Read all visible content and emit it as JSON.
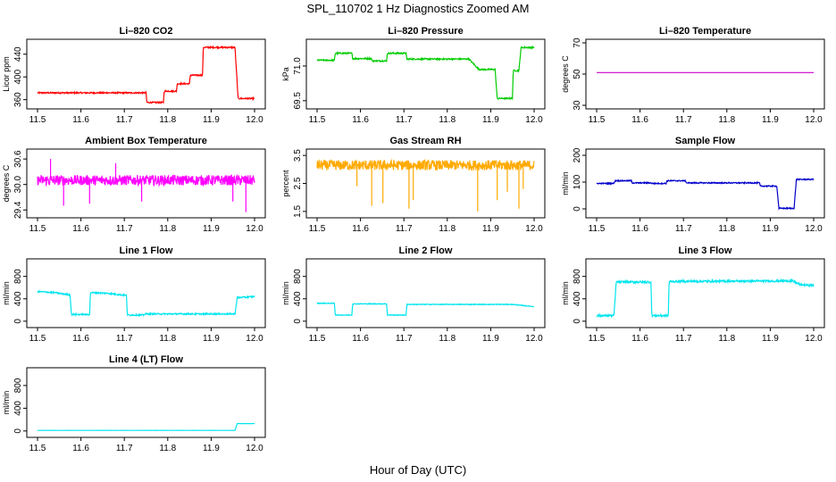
{
  "figure": {
    "title": "SPL_110702 1 Hz Diagnostics Zoomed AM",
    "xlabel": "Hour of Day (UTC)"
  },
  "chart_data": [
    {
      "type": "line",
      "title": "Li–820 CO2",
      "ylabel": "Licor ppm",
      "color": "#ff0000",
      "xlim": [
        11.5,
        12.0
      ],
      "ylim": [
        350,
        460
      ],
      "yticks": [
        "360",
        "400",
        "440"
      ],
      "xticks": [
        "11.5",
        "11.6",
        "11.7",
        "11.8",
        "11.9",
        "12.0"
      ],
      "noise": 1.2,
      "x": [
        11.5,
        11.65,
        11.75,
        11.752,
        11.79,
        11.792,
        11.82,
        11.822,
        11.85,
        11.852,
        11.88,
        11.882,
        11.955,
        11.962,
        12.0
      ],
      "y": [
        372,
        372,
        372,
        355,
        355,
        375,
        375,
        388,
        388,
        403,
        403,
        452,
        452,
        362,
        362
      ]
    },
    {
      "type": "line",
      "title": "Li–820 Pressure",
      "ylabel": "kPa",
      "color": "#00cc00",
      "xlim": [
        11.5,
        12.0
      ],
      "ylim": [
        69.3,
        72.0
      ],
      "yticks": [
        "69.5",
        "71.0"
      ],
      "xticks": [
        "11.5",
        "11.6",
        "11.7",
        "11.8",
        "11.9",
        "12.0"
      ],
      "noise": 0.03,
      "x": [
        11.5,
        11.54,
        11.542,
        11.58,
        11.582,
        11.625,
        11.627,
        11.66,
        11.662,
        11.705,
        11.707,
        11.77,
        11.85,
        11.87,
        11.875,
        11.91,
        11.915,
        11.95,
        11.952,
        11.965,
        11.97,
        12.0
      ],
      "y": [
        71.25,
        71.25,
        71.55,
        71.55,
        71.32,
        71.32,
        71.22,
        71.22,
        71.55,
        71.55,
        71.3,
        71.3,
        71.3,
        70.9,
        70.85,
        70.85,
        69.6,
        69.6,
        70.8,
        70.8,
        71.8,
        71.8
      ]
    },
    {
      "type": "line",
      "title": "Li–820 Temperature",
      "ylabel": "degrees C",
      "color": "#cc00cc",
      "xlim": [
        11.5,
        12.0
      ],
      "ylim": [
        30,
        70
      ],
      "yticks": [
        "30",
        "50",
        "70"
      ],
      "xticks": [
        "11.5",
        "11.6",
        "11.7",
        "11.8",
        "11.9",
        "12.0"
      ],
      "noise": 0,
      "x": [
        11.5,
        12.0
      ],
      "y": [
        51,
        51
      ]
    },
    {
      "type": "line",
      "title": "Ambient Box Temperature",
      "ylabel": "degrees C",
      "color": "#ff00ff",
      "xlim": [
        11.5,
        12.0
      ],
      "ylim": [
        29.3,
        30.75
      ],
      "yticks": [
        "29.4",
        "30.0",
        "30.6"
      ],
      "xticks": [
        "11.5",
        "11.6",
        "11.7",
        "11.8",
        "11.9",
        "12.0"
      ],
      "noise": 0.12,
      "spikes": [
        [
          11.53,
          30.6
        ],
        [
          11.56,
          29.5
        ],
        [
          11.62,
          29.55
        ],
        [
          11.68,
          30.5
        ],
        [
          11.74,
          29.6
        ],
        [
          11.95,
          29.6
        ],
        [
          11.98,
          29.35
        ]
      ],
      "x": [
        11.5,
        12.0
      ],
      "y": [
        30.1,
        30.1
      ]
    },
    {
      "type": "line",
      "title": "Gas Stream RH",
      "ylabel": "percent",
      "color": "#ffaa00",
      "xlim": [
        11.5,
        12.0
      ],
      "ylim": [
        1.4,
        3.6
      ],
      "yticks": [
        "1.5",
        "2.5",
        "3.5"
      ],
      "xticks": [
        "11.5",
        "11.6",
        "11.7",
        "11.8",
        "11.9",
        "12.0"
      ],
      "noise": 0.18,
      "spikes": [
        [
          11.592,
          2.4
        ],
        [
          11.626,
          1.7
        ],
        [
          11.652,
          1.8
        ],
        [
          11.712,
          1.6
        ],
        [
          11.722,
          1.9
        ],
        [
          11.87,
          1.5
        ],
        [
          11.915,
          1.9
        ],
        [
          11.938,
          2.2
        ],
        [
          11.965,
          1.6
        ],
        [
          11.975,
          2.3
        ]
      ],
      "x": [
        11.5,
        12.0
      ],
      "y": [
        3.15,
        3.15
      ]
    },
    {
      "type": "line",
      "title": "Sample Flow",
      "ylabel": "ml/min",
      "color": "#0000cc",
      "xlim": [
        11.5,
        12.0
      ],
      "ylim": [
        -20,
        210
      ],
      "yticks": [
        "0",
        "100",
        "200"
      ],
      "xticks": [
        "11.5",
        "11.6",
        "11.7",
        "11.8",
        "11.9",
        "12.0"
      ],
      "noise": 2,
      "x": [
        11.5,
        11.54,
        11.542,
        11.58,
        11.582,
        11.625,
        11.627,
        11.66,
        11.662,
        11.705,
        11.707,
        11.875,
        11.877,
        11.915,
        11.92,
        11.955,
        11.96,
        12.0
      ],
      "y": [
        95,
        95,
        105,
        105,
        97,
        97,
        95,
        95,
        105,
        105,
        97,
        97,
        85,
        85,
        2,
        2,
        110,
        110
      ]
    },
    {
      "type": "line",
      "title": "Line 1 Flow",
      "ylabel": "ml/min",
      "color": "#00e5ee",
      "xlim": [
        11.5,
        12.0
      ],
      "ylim": [
        -50,
        1050
      ],
      "yticks": [
        "0",
        "400",
        "800"
      ],
      "xticks": [
        "11.5",
        "11.6",
        "11.7",
        "11.8",
        "11.9",
        "12.0"
      ],
      "noise": 12,
      "x": [
        11.5,
        11.54,
        11.575,
        11.578,
        11.62,
        11.622,
        11.66,
        11.705,
        11.707,
        11.745,
        11.747,
        11.955,
        11.96,
        12.0
      ],
      "y": [
        530,
        510,
        470,
        120,
        120,
        510,
        500,
        460,
        110,
        110,
        130,
        130,
        420,
        440
      ]
    },
    {
      "type": "line",
      "title": "Line 2 Flow",
      "ylabel": "ml/min",
      "color": "#00e5ee",
      "xlim": [
        11.5,
        12.0
      ],
      "ylim": [
        -50,
        1050
      ],
      "yticks": [
        "0",
        "400",
        "800"
      ],
      "xticks": [
        "11.5",
        "11.6",
        "11.7",
        "11.8",
        "11.9",
        "12.0"
      ],
      "noise": 6,
      "x": [
        11.5,
        11.54,
        11.542,
        11.58,
        11.582,
        11.66,
        11.662,
        11.705,
        11.707,
        11.95,
        12.0
      ],
      "y": [
        320,
        320,
        110,
        110,
        310,
        310,
        110,
        110,
        300,
        300,
        260
      ]
    },
    {
      "type": "line",
      "title": "Line 3 Flow",
      "ylabel": "ml/min",
      "color": "#00e5ee",
      "xlim": [
        11.5,
        12.0
      ],
      "ylim": [
        -50,
        1050
      ],
      "yticks": [
        "0",
        "400",
        "800"
      ],
      "xticks": [
        "11.5",
        "11.6",
        "11.7",
        "11.8",
        "11.9",
        "12.0"
      ],
      "noise": 18,
      "x": [
        11.5,
        11.54,
        11.545,
        11.625,
        11.627,
        11.665,
        11.667,
        11.95,
        11.97,
        12.0
      ],
      "y": [
        100,
        100,
        700,
        700,
        100,
        100,
        710,
        720,
        650,
        640
      ]
    },
    {
      "type": "line",
      "title": "Line 4 (LT) Flow",
      "ylabel": "ml/min",
      "color": "#00e5ee",
      "xlim": [
        11.5,
        12.0
      ],
      "ylim": [
        -50,
        1050
      ],
      "yticks": [
        "0",
        "400",
        "800"
      ],
      "xticks": [
        "11.5",
        "11.6",
        "11.7",
        "11.8",
        "11.9",
        "12.0"
      ],
      "noise": 1,
      "x": [
        11.5,
        11.955,
        11.96,
        12.0
      ],
      "y": [
        10,
        10,
        130,
        130
      ]
    }
  ]
}
